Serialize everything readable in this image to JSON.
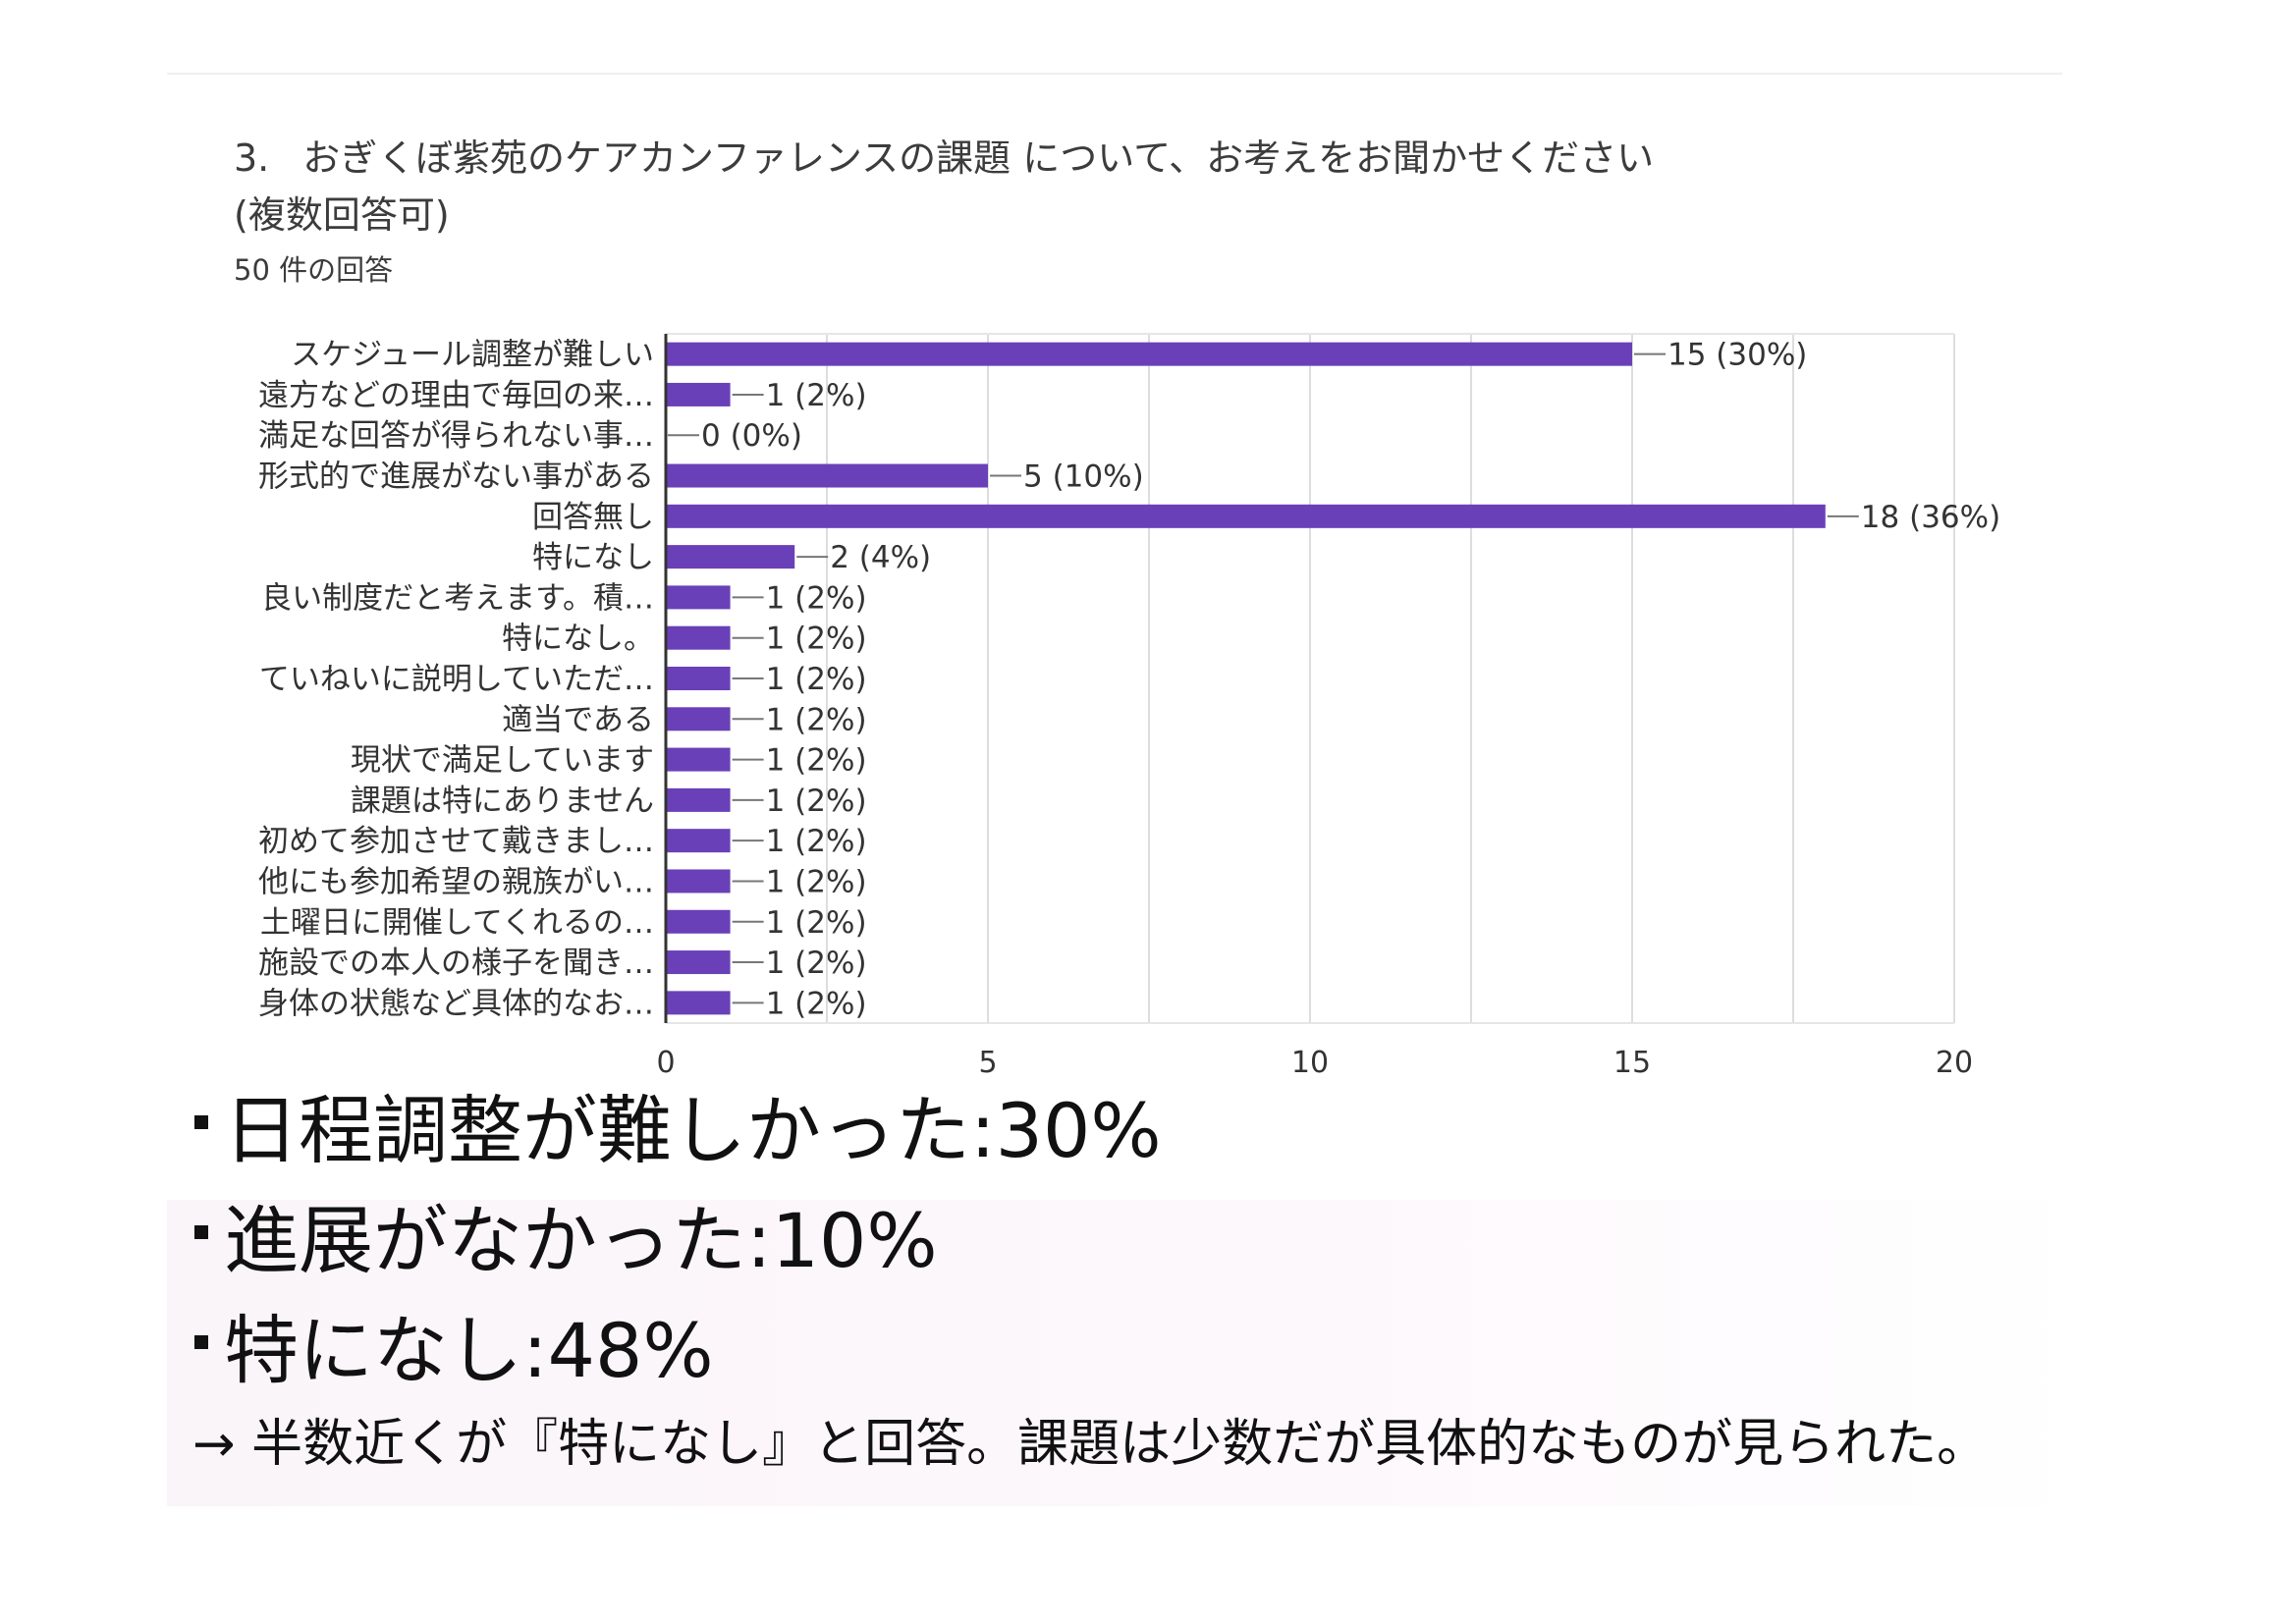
{
  "question": {
    "number": "3.",
    "title": "おぎくぼ紫苑のケアカンファレンスの課題 について、お考えをお聞かせください",
    "subtitle": "(複数回答可)",
    "response_count": "50 件の回答"
  },
  "colors": {
    "bar": "#6a40b9",
    "grid": "#dddddd",
    "axis": "#333333",
    "label": "#333333"
  },
  "chart_data": {
    "type": "bar",
    "orientation": "horizontal",
    "categories": [
      "スケジュール調整が難しい",
      "遠方などの理由で毎回の来…",
      "満足な回答が得られない事…",
      "形式的で進展がない事がある",
      "回答無し",
      "特になし",
      "良い制度だと考えます。積…",
      "特になし。",
      "ていねいに説明していただ…",
      "適当である",
      "現状で満足しています",
      "課題は特にありません",
      "初めて参加させて戴きまし…",
      "他にも参加希望の親族がい…",
      "土曜日に開催してくれるの…",
      "施設での本人の様子を聞き…",
      "身体の状態など具体的なお…"
    ],
    "values": [
      15,
      1,
      0,
      5,
      18,
      2,
      1,
      1,
      1,
      1,
      1,
      1,
      1,
      1,
      1,
      1,
      1
    ],
    "data_labels": [
      "15 (30%)",
      "1 (2%)",
      "0 (0%)",
      "5 (10%)",
      "18 (36%)",
      "2 (4%)",
      "1 (2%)",
      "1 (2%)",
      "1 (2%)",
      "1 (2%)",
      "1 (2%)",
      "1 (2%)",
      "1 (2%)",
      "1 (2%)",
      "1 (2%)",
      "1 (2%)",
      "1 (2%)"
    ],
    "xlim": [
      0,
      20
    ],
    "xticks": [
      "0",
      "5",
      "10",
      "15",
      "20"
    ],
    "grid": true
  },
  "summary": {
    "lines": [
      {
        "text": "日程調整が難しかった",
        "value": "30%"
      },
      {
        "text": "進展がなかった",
        "value": "10%"
      },
      {
        "text": "特になし",
        "value": "48%"
      }
    ],
    "conclusion": "→ 半数近くが『特になし』と回答。課題は少数だが具体的なものが見られた。"
  }
}
